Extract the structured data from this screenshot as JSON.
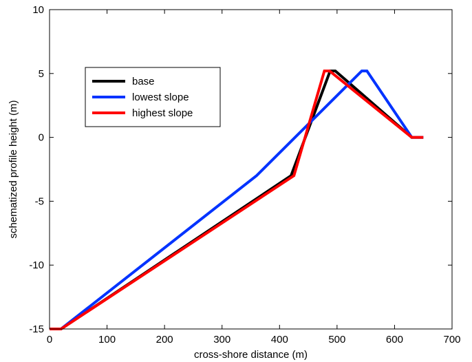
{
  "chart_data": {
    "type": "line",
    "title": "",
    "xlabel": "cross-shore distance (m)",
    "ylabel": "schematized profile height (m)",
    "xlim": [
      0,
      700
    ],
    "ylim": [
      -15,
      10
    ],
    "xticks": [
      0,
      100,
      200,
      300,
      400,
      500,
      600,
      700
    ],
    "yticks": [
      -15,
      -10,
      -5,
      0,
      5,
      10
    ],
    "grid": false,
    "legend_position": "upper-left",
    "series": [
      {
        "name": "base",
        "color": "#000000",
        "x": [
          0,
          20,
          420,
          488,
          497,
          630,
          650
        ],
        "y": [
          -15,
          -15,
          -3,
          5.2,
          5.2,
          0,
          0
        ]
      },
      {
        "name": "lowest slope",
        "color": "#0033ff",
        "x": [
          0,
          20,
          360,
          543,
          552,
          630,
          650
        ],
        "y": [
          -15,
          -15,
          -3,
          5.2,
          5.2,
          0,
          0
        ]
      },
      {
        "name": "highest slope",
        "color": "#ff0000",
        "x": [
          0,
          20,
          425,
          478,
          487,
          630,
          650
        ],
        "y": [
          -15,
          -15,
          -3,
          5.2,
          5.2,
          0,
          0
        ]
      }
    ]
  }
}
